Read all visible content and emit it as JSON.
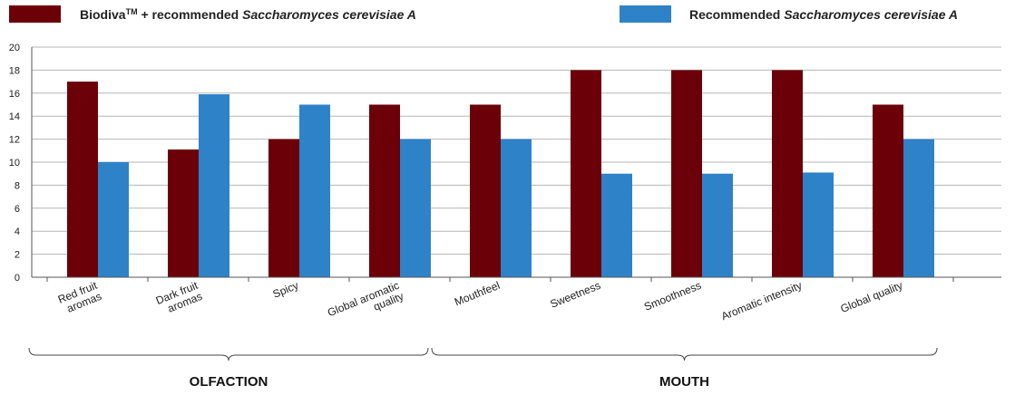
{
  "legend": {
    "series1_prefix": "Biodiva",
    "series1_tm": "TM",
    "series1_mid": " + recommended ",
    "series1_italic": "Saccharomyces cerevisiae A",
    "series2_prefix": "Recommended ",
    "series2_italic": "Saccharomyces cerevisiae A"
  },
  "colors": {
    "series1": "#6b0008",
    "series2": "#2e82c8",
    "grid": "#b5b5b5",
    "axis": "#555555"
  },
  "chart_data": {
    "type": "bar",
    "categories": [
      [
        "Red fruit",
        "aromas"
      ],
      [
        "Dark fruit",
        "aromas"
      ],
      [
        "Spicy"
      ],
      [
        "Global aromatic",
        "quality"
      ],
      [
        "Mouthfeel"
      ],
      [
        "Sweetness"
      ],
      [
        "Smoothness"
      ],
      [
        "Aromatic intensity"
      ],
      [
        "Global quality"
      ]
    ],
    "series": [
      {
        "values": [
          17,
          11.1,
          12,
          15,
          15,
          18,
          18,
          18,
          15
        ]
      },
      {
        "values": [
          10,
          15.9,
          15,
          12,
          12,
          9,
          9,
          9.1,
          12
        ]
      }
    ],
    "yticks": [
      0,
      2,
      4,
      6,
      8,
      10,
      12,
      14,
      16,
      18,
      20
    ],
    "ylim": [
      0,
      20
    ],
    "grid": true,
    "legend_position": "top",
    "groups": [
      {
        "label": "OLFACTION",
        "from": 0,
        "to": 3
      },
      {
        "label": "MOUTH",
        "from": 4,
        "to": 8
      }
    ]
  }
}
